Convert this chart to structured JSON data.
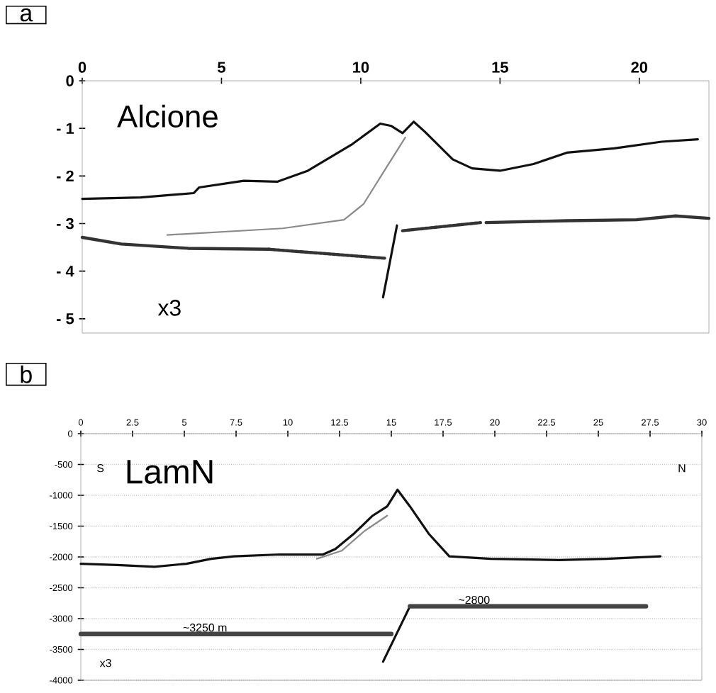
{
  "chart_data": [
    {
      "type": "line",
      "title": "Alcione",
      "annotations": [
        "a",
        "x3"
      ],
      "xlim": [
        0,
        22.5
      ],
      "ylim": [
        -5.3,
        0
      ],
      "xticks": [
        0,
        5,
        10,
        15,
        20
      ],
      "yticks": [
        0,
        {
          "value": -1,
          "label": "- 1"
        },
        {
          "value": -2,
          "label": "- 2"
        },
        {
          "value": -3,
          "label": "- 3"
        },
        {
          "value": -4,
          "label": "- 4"
        },
        {
          "value": -5,
          "label": "- 5"
        }
      ],
      "grid": false,
      "series": [
        {
          "color": "#111111",
          "line_style": "solid",
          "x": [
            0,
            2.1,
            4.0,
            4.2,
            5.8,
            7.0,
            8.1,
            9.7,
            10.7,
            11.1,
            11.5,
            11.9,
            12.3,
            13.3,
            14.0,
            15.0,
            16.2,
            17.4,
            19.1,
            20.8,
            22.1
          ],
          "values": [
            -2.48,
            -2.45,
            -2.36,
            -2.24,
            -2.1,
            -2.12,
            -1.89,
            -1.33,
            -0.9,
            -0.95,
            -1.1,
            -0.86,
            -1.07,
            -1.65,
            -1.84,
            -1.89,
            -1.75,
            -1.51,
            -1.42,
            -1.28,
            -1.23
          ]
        },
        {
          "color": "#8a8a8a",
          "line_style": "solid",
          "x": [
            3.05,
            7.2,
            9.4,
            10.1,
            10.9,
            11.6
          ],
          "values": [
            -3.24,
            -3.1,
            -2.92,
            -2.59,
            -1.84,
            -1.19
          ]
        },
        {
          "color": "#333333",
          "line_style": "solid",
          "x": [
            0,
            1.4,
            3.8,
            6.7
          ],
          "values": [
            -3.29,
            -3.43,
            -3.52,
            -3.54
          ]
        },
        {
          "color": "#333333",
          "line_style": "dotted",
          "x": [
            6.7,
            10.9
          ],
          "values": [
            -3.54,
            -3.73
          ]
        },
        {
          "color": "#111111",
          "line_style": "solid",
          "x": [
            10.8,
            11.3
          ],
          "values": [
            -4.55,
            -3.04
          ]
        },
        {
          "color": "#333333",
          "line_style": "dotted",
          "x": [
            11.5,
            14.3
          ],
          "values": [
            -3.15,
            -2.98
          ]
        },
        {
          "color": "#333333",
          "line_style": "solid",
          "x": [
            14.5,
            17.4,
            19.9,
            21.3,
            22.5
          ],
          "values": [
            -2.98,
            -2.94,
            -2.92,
            -2.84,
            -2.89
          ]
        }
      ]
    },
    {
      "type": "line",
      "title": "LamN",
      "annotations": [
        "b",
        "x3",
        "S",
        "N",
        {
          "text": "~3250 m",
          "x": 6,
          "y": -3250
        },
        {
          "text": "~2800",
          "x": 19,
          "y": -2800
        }
      ],
      "xlim": [
        0,
        30
      ],
      "ylim": [
        -4000,
        0
      ],
      "xticks": [
        0,
        2.5,
        5,
        7.5,
        10,
        12.5,
        15,
        17.5,
        20,
        22.5,
        25,
        27.5,
        30
      ],
      "yticks": [
        0,
        -500,
        -1000,
        -1500,
        -2000,
        -2500,
        -3000,
        -3500,
        -4000
      ],
      "grid": "y",
      "series": [
        {
          "color": "#111111",
          "line_style": "solid",
          "x": [
            0,
            1.76,
            3.56,
            5.1,
            6.3,
            7.4,
            9.6,
            11.7,
            12.3,
            13.2,
            14.1,
            14.8,
            15.3,
            15.9,
            16.8,
            17.8,
            19.8,
            23.1,
            25.4,
            28.0
          ],
          "values": [
            -2110,
            -2130,
            -2160,
            -2110,
            -2030,
            -1990,
            -1960,
            -1960,
            -1870,
            -1620,
            -1330,
            -1180,
            -910,
            -1180,
            -1620,
            -1990,
            -2030,
            -2050,
            -2030,
            -1990
          ]
        },
        {
          "color": "#8a8a8a",
          "line_style": "solid",
          "x": [
            11.4,
            12.6,
            13.7,
            14.8
          ],
          "values": [
            -2030,
            -1900,
            -1580,
            -1330
          ]
        },
        {
          "color": "#444444",
          "line_style": "solid",
          "x": [
            0,
            15.0
          ],
          "values": [
            -3250,
            -3250
          ]
        },
        {
          "color": "#111111",
          "line_style": "solid",
          "x": [
            14.6,
            15.9
          ],
          "values": [
            -3700,
            -2800
          ]
        },
        {
          "color": "#444444",
          "line_style": "solid",
          "x": [
            15.9,
            27.3
          ],
          "values": [
            -2800,
            -2800
          ]
        }
      ]
    }
  ]
}
